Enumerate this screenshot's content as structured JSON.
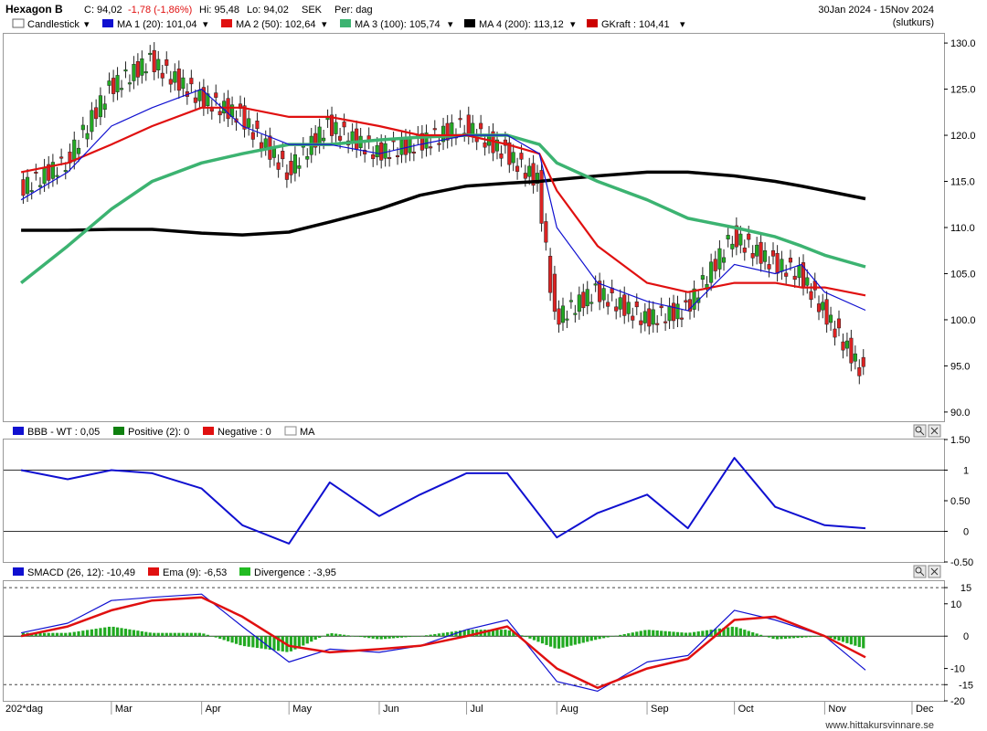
{
  "header": {
    "ticker": "Hexagon B",
    "close": "C: 94,02",
    "change": "-1,78 (-1,86%)",
    "high": "Hi: 95,48",
    "low": "Lo: 94,02",
    "currency": "SEK",
    "period": "Per: dag",
    "date_range": "30Jan 2024 - 15Nov 2024",
    "note": "(slutkurs)"
  },
  "legend_main": [
    {
      "label": "Candlestick",
      "color": "#ffffff"
    },
    {
      "label": "MA 1 (20): 101,04",
      "color": "#1010d0"
    },
    {
      "label": "MA 2 (50): 102,64",
      "color": "#e01010"
    },
    {
      "label": "MA 3 (100): 105,74",
      "color": "#3cb371"
    },
    {
      "label": "MA 4 (200): 113,12",
      "color": "#000000"
    },
    {
      "label": "GKraft : 104,41",
      "color": "#cc0000"
    }
  ],
  "legend_bbb": [
    {
      "label": "BBB - WT : 0,05",
      "color": "#1010d0"
    },
    {
      "label": "Positive (2): 0",
      "color": "#108010"
    },
    {
      "label": "Negative : 0",
      "color": "#e01010"
    },
    {
      "label": "MA",
      "color": "#ffffff"
    }
  ],
  "legend_macd": [
    {
      "label": "SMACD (26, 12): -10,49",
      "color": "#1010d0"
    },
    {
      "label": "Ema (9): -6,53",
      "color": "#e01010"
    },
    {
      "label": "Divergence : -3,95",
      "color": "#22bb22"
    }
  ],
  "price_axis": [
    "130.0",
    "125.0",
    "120.0",
    "115.0",
    "110.0",
    "105.0",
    "100.0",
    "95.0",
    "90.0"
  ],
  "bbb_axis": [
    "1.50",
    "1",
    "0.50",
    "0",
    "-0.50"
  ],
  "macd_axis": [
    "15",
    "10",
    "0",
    "-10",
    "-15",
    "-20"
  ],
  "months": [
    "202*dag",
    "Mar",
    "Apr",
    "May",
    "Jun",
    "Jul",
    "Aug",
    "Sep",
    "Oct",
    "Nov",
    "Dec"
  ],
  "credit": "www.hittakursvinnare.se",
  "chart_data": [
    {
      "type": "line",
      "panel": "price",
      "ylim": [
        89,
        131
      ],
      "x": [
        "2024-01-30",
        "2024-02-15",
        "2024-03-01",
        "2024-03-15",
        "2024-04-01",
        "2024-04-15",
        "2024-05-01",
        "2024-05-15",
        "2024-06-01",
        "2024-06-15",
        "2024-07-01",
        "2024-07-15",
        "2024-07-26",
        "2024-08-01",
        "2024-08-15",
        "2024-09-01",
        "2024-09-15",
        "2024-10-01",
        "2024-10-15",
        "2024-10-24",
        "2024-11-01",
        "2024-11-15"
      ],
      "series": [
        {
          "name": "Candlestick",
          "values": [
            114,
            117,
            125,
            128,
            124,
            122,
            116,
            121,
            118,
            119,
            121,
            118,
            115,
            100,
            103,
            100,
            101,
            109,
            106,
            105,
            101,
            94.02
          ]
        },
        {
          "name": "MA 1 (20)",
          "values": [
            113,
            116,
            121,
            123,
            125,
            121,
            119,
            119,
            118,
            119,
            120,
            120,
            118,
            110,
            104,
            102,
            101,
            106,
            105,
            106,
            103,
            101.04
          ]
        },
        {
          "name": "MA 2 (50)",
          "values": [
            116,
            117,
            119,
            121,
            123,
            123,
            122,
            122,
            121,
            120,
            120,
            119,
            118,
            114,
            108,
            104,
            103,
            104,
            104,
            103.5,
            103.5,
            102.64
          ]
        },
        {
          "name": "MA 3 (100)",
          "values": [
            104,
            108,
            112,
            115,
            117,
            118,
            119,
            119,
            119.5,
            119.8,
            120,
            120,
            119,
            117,
            115,
            113,
            111,
            110,
            109,
            108,
            107,
            105.74
          ]
        },
        {
          "name": "MA 4 (200)",
          "values": [
            109.7,
            109.7,
            109.8,
            109.8,
            109.4,
            109.2,
            109.5,
            110.6,
            112,
            113.5,
            114.5,
            114.8,
            115,
            115.2,
            115.6,
            116,
            116,
            115.6,
            115,
            114.5,
            114,
            113.12
          ]
        }
      ]
    },
    {
      "type": "line",
      "panel": "BBB - WT",
      "ylim": [
        -0.5,
        1.5
      ],
      "x": [
        "2024-01-30",
        "2024-02-15",
        "2024-03-01",
        "2024-03-15",
        "2024-04-01",
        "2024-04-15",
        "2024-05-01",
        "2024-05-15",
        "2024-06-01",
        "2024-06-15",
        "2024-07-01",
        "2024-07-15",
        "2024-08-01",
        "2024-08-15",
        "2024-09-01",
        "2024-09-15",
        "2024-10-01",
        "2024-10-15",
        "2024-11-01",
        "2024-11-15"
      ],
      "series": [
        {
          "name": "BBB - WT",
          "values": [
            1,
            0.85,
            1,
            0.95,
            0.7,
            0.1,
            -0.2,
            0.8,
            0.25,
            0.6,
            0.95,
            0.95,
            -0.1,
            0.3,
            0.6,
            0.05,
            1.2,
            0.4,
            0.1,
            0.05
          ]
        }
      ]
    },
    {
      "type": "line",
      "panel": "SMACD",
      "ylim": [
        -20,
        17
      ],
      "x": [
        "2024-01-30",
        "2024-02-15",
        "2024-03-01",
        "2024-03-15",
        "2024-04-01",
        "2024-04-15",
        "2024-05-01",
        "2024-05-15",
        "2024-06-01",
        "2024-06-15",
        "2024-07-01",
        "2024-07-15",
        "2024-08-01",
        "2024-08-15",
        "2024-09-01",
        "2024-09-15",
        "2024-10-01",
        "2024-10-15",
        "2024-11-01",
        "2024-11-15"
      ],
      "series": [
        {
          "name": "SMACD (26, 12)",
          "values": [
            1,
            4,
            11,
            12,
            13,
            3,
            -8,
            -4,
            -5,
            -3,
            2,
            5,
            -14,
            -17,
            -8,
            -6,
            8,
            5,
            0,
            -10.49
          ]
        },
        {
          "name": "Ema (9)",
          "values": [
            0,
            3,
            8,
            11,
            12,
            6,
            -3,
            -5,
            -4,
            -3,
            0,
            3,
            -10,
            -16,
            -10,
            -7,
            5,
            6,
            0,
            -6.53
          ]
        },
        {
          "name": "Divergence",
          "values": [
            1,
            1,
            3,
            1,
            1,
            -3,
            -5,
            1,
            -1,
            0,
            2,
            2,
            -4,
            -1,
            2,
            1,
            3,
            -1,
            0,
            -3.95
          ]
        }
      ]
    }
  ]
}
